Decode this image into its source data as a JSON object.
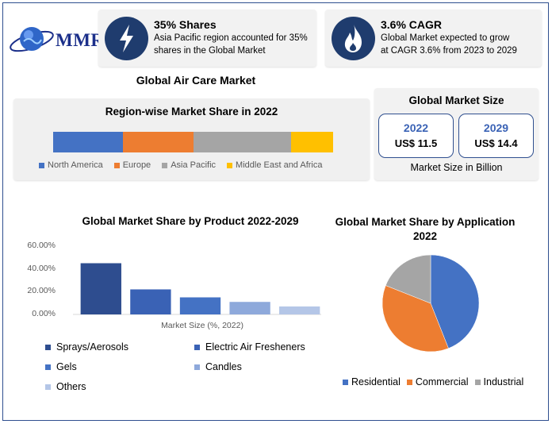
{
  "brand": {
    "logo_text": "MMR"
  },
  "stats": [
    {
      "icon": "lightning-icon",
      "title": "35% Shares",
      "desc_line1": "Asia Pacific region accounted for 35%",
      "desc_line2": "shares in the Global Market"
    },
    {
      "icon": "flame-icon",
      "title": "3.6% CAGR",
      "desc_line1": "Global Market expected to grow",
      "desc_line2": "at CAGR 3.6% from 2023 to 2029"
    }
  ],
  "main_title": "Global Air Care Market",
  "market_size": {
    "title": "Global Market Size",
    "boxes": [
      {
        "year": "2022",
        "amount": "US$ 11.5"
      },
      {
        "year": "2029",
        "amount": "US$ 14.4"
      }
    ],
    "caption": "Market Size in Billion"
  },
  "colors": {
    "blue": "#4472C4",
    "orange": "#ED7D31",
    "gray": "#A5A5A5",
    "yellow": "#FFC000",
    "navy": "#1f3c6e"
  },
  "chart_data": [
    {
      "type": "bar",
      "orientation": "horizontal-stacked",
      "title": "Region-wise Market Share in 2022",
      "categories": [
        "2022"
      ],
      "series": [
        {
          "name": "North America",
          "values": [
            25
          ],
          "color": "#4472C4"
        },
        {
          "name": "Europe",
          "values": [
            25
          ],
          "color": "#ED7D31"
        },
        {
          "name": "Asia Pacific",
          "values": [
            35
          ],
          "color": "#A5A5A5"
        },
        {
          "name": "Middle East and Africa",
          "values": [
            15
          ],
          "color": "#FFC000"
        }
      ],
      "legend": "bottom"
    },
    {
      "type": "bar",
      "title": "Global Market Share by Product 2022-2029",
      "xlabel": "Market Size (%, 2022)",
      "categories": [
        "Sprays/Aerosols",
        "Electric Air Fresheners",
        "Gels",
        "Candles",
        "Others"
      ],
      "values": [
        45,
        22,
        15,
        11,
        7
      ],
      "colors": [
        "#2E4D8F",
        "#3A62B5",
        "#4472C4",
        "#8EA9DB",
        "#B4C6E7"
      ],
      "yticks": [
        "60.00%",
        "40.00%",
        "20.00%",
        "0.00%"
      ],
      "ylim": [
        0,
        60
      ],
      "grid": false,
      "legend": "bottom"
    },
    {
      "type": "pie",
      "title": "Global Market Share by Application 2022",
      "categories": [
        "Residential",
        "Commercial",
        "Industrial"
      ],
      "values": [
        44,
        37,
        19
      ],
      "colors": [
        "#4472C4",
        "#ED7D31",
        "#A5A5A5"
      ],
      "legend": "bottom"
    }
  ]
}
